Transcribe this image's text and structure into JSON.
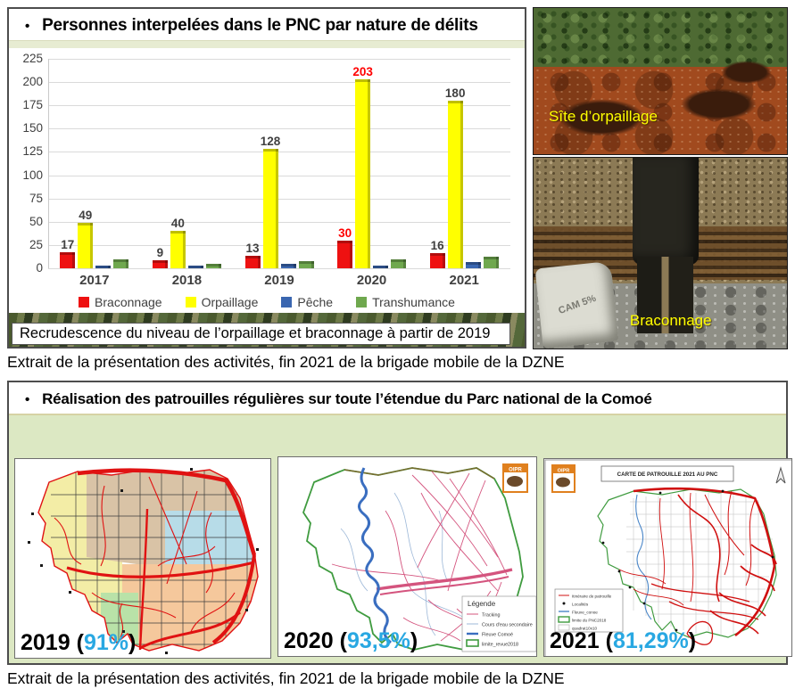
{
  "panel1": {
    "bullet": "•",
    "title": "Personnes interpelées dans le PNC par nature de délits",
    "caption": "Recrudescence du niveau de l’orpaillage et braconnage à partir de 2019"
  },
  "chart_data": {
    "type": "bar",
    "title": "Personnes interpelées dans le PNC par nature de délits",
    "categories": [
      "2017",
      "2018",
      "2019",
      "2020",
      "2021"
    ],
    "series": [
      {
        "name": "Braconnage",
        "color": "#ee1111",
        "values": [
          17,
          9,
          13,
          30,
          16
        ],
        "show_labels": true
      },
      {
        "name": "Orpaillage",
        "color": "#ffff00",
        "values": [
          49,
          40,
          128,
          203,
          180
        ],
        "show_labels": true
      },
      {
        "name": "Pêche",
        "color": "#3a66b0",
        "values": [
          3,
          3,
          5,
          3,
          7
        ],
        "show_labels": false
      },
      {
        "name": "Transhumance",
        "color": "#6fa84e",
        "values": [
          10,
          5,
          8,
          10,
          12
        ],
        "show_labels": false
      }
    ],
    "ylim": [
      0,
      225
    ],
    "ytick_step": 25,
    "highlight_category": "2020",
    "highlight_color": "#ff0000",
    "grid": true,
    "legend_position": "bottom"
  },
  "photos": {
    "photo1_label": "Sîte d’orpaillage",
    "photo2_label": "Braconnage",
    "sack_text": "CAM 5%"
  },
  "captions": {
    "caption1": "Extrait de la présentation des activités, fin 2021 de la brigade mobile de la DZNE",
    "caption2": "Extrait de la présentation des activités, fin 2021 de la brigade mobile de la DZNE"
  },
  "panel2": {
    "bullet": "•",
    "title": "Réalisation des patrouilles régulières sur toute l’étendue du Parc national de la Comoé",
    "paren_open": "(",
    "paren_close": ")",
    "maps": [
      {
        "year": "2019",
        "coverage": "91%"
      },
      {
        "year": "2020",
        "coverage": "93,5%",
        "logo": "OIPR",
        "legend_title": "Légende",
        "legend_items": [
          "Tracking",
          "Cours d'eau secondaire",
          "Fleuve Comoé",
          "limite_revue2018"
        ]
      },
      {
        "year": "2021",
        "coverage": "81,29%",
        "logo": "OIPR",
        "map_title": "CARTE DE PATROUILLE 2021 AU PNC",
        "legend_items": [
          "Itinéraire de patrouille",
          "Localités",
          "Fleuve_conoe",
          "limite du PNC2018",
          "quadrat10x10"
        ]
      }
    ]
  },
  "colors": {
    "accent_percent": "#29a8e2",
    "panel_border": "#4d4d4d",
    "green_band": "#dce8c3",
    "bar_red": "#ee1111",
    "bar_yellow": "#ffff00",
    "bar_blue": "#3a66b0",
    "bar_green": "#6fa84e"
  }
}
